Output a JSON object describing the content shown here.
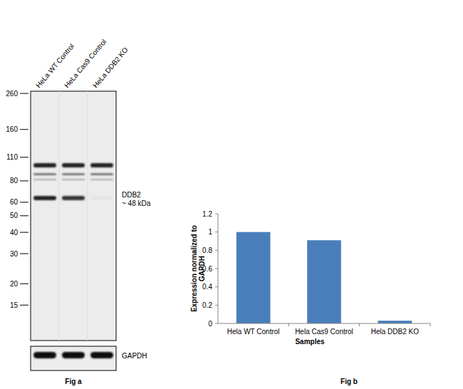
{
  "figure_a": {
    "lanes": [
      "HeLa WT Control",
      "HeLa Cas9 Control",
      "HeLa DDB2 KO"
    ],
    "mw_ylim": [
      9.3,
      268
    ],
    "mw_ticks": [
      260,
      160,
      110,
      80,
      60,
      50,
      40,
      30,
      20,
      15
    ],
    "log": true,
    "band_label": [
      "DDB2",
      "~ 48 kDa"
    ],
    "loading_control": "GAPDH",
    "caption": "Fig a"
  },
  "chart_data": {
    "type": "bar",
    "categories": [
      "Hela WT Control",
      "Hela Cas9 Control",
      "Hela DDB2 KO"
    ],
    "values": [
      1,
      0.91,
      0.03
    ],
    "color": "#4a7ebb",
    "ylim": [
      0,
      1.2
    ],
    "yticks": [
      0,
      0.2,
      0.4,
      0.6,
      0.8,
      1,
      1.2
    ],
    "x_label": "Samples",
    "y_label": [
      "Expression  normalized to",
      "GAPDH"
    ],
    "grid": false
  },
  "figure_b": {
    "caption": "Fig b"
  }
}
